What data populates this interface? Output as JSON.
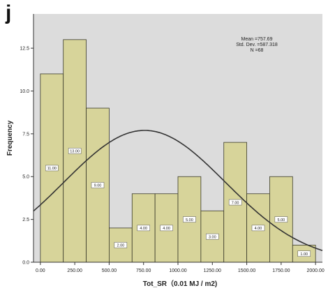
{
  "panel_label": "j",
  "stats": {
    "mean": "Mean =757.69",
    "std": "Std. Dev. =587.318",
    "n": "N =68"
  },
  "colors": {
    "plot_background": "#dcdcdc",
    "bar_fill": "#d7d49a",
    "bar_stroke": "#3a3a2a",
    "curve": "#333333"
  },
  "chart_data": {
    "type": "bar",
    "subtype": "histogram",
    "xlabel": "Tot_SR（0.01 MJ / m2)",
    "ylabel": "Frequency",
    "xlim": [
      -50,
      2050
    ],
    "ylim": [
      0,
      14.5
    ],
    "bin_width": 166.67,
    "bin_start": 0,
    "values": [
      11,
      13,
      9,
      2,
      4,
      4,
      5,
      3,
      7,
      4,
      5,
      1
    ],
    "bar_labels": [
      "11.00",
      "13.00",
      "9.00",
      "2.00",
      "4.00",
      "4.00",
      "5.00",
      "3.00",
      "7.00",
      "4.00",
      "5.00",
      "1.00"
    ],
    "x_ticks": [
      0,
      250,
      500,
      750,
      1000,
      1250,
      1500,
      1750,
      2000
    ],
    "x_tick_labels": [
      "0.00",
      "250.00",
      "500.00",
      "750.00",
      "1000.00",
      "1250.00",
      "1500.00",
      "1750.00",
      "2000.00"
    ],
    "y_ticks": [
      0,
      2.5,
      5,
      7.5,
      10,
      12.5
    ],
    "y_tick_labels": [
      "0.0",
      "2.5",
      "5.0",
      "7.5",
      "10.0",
      "12.5"
    ],
    "normal_curve": {
      "mean": 757.69,
      "std": 587.318,
      "n": 68
    },
    "grid": false,
    "legend": "none"
  }
}
